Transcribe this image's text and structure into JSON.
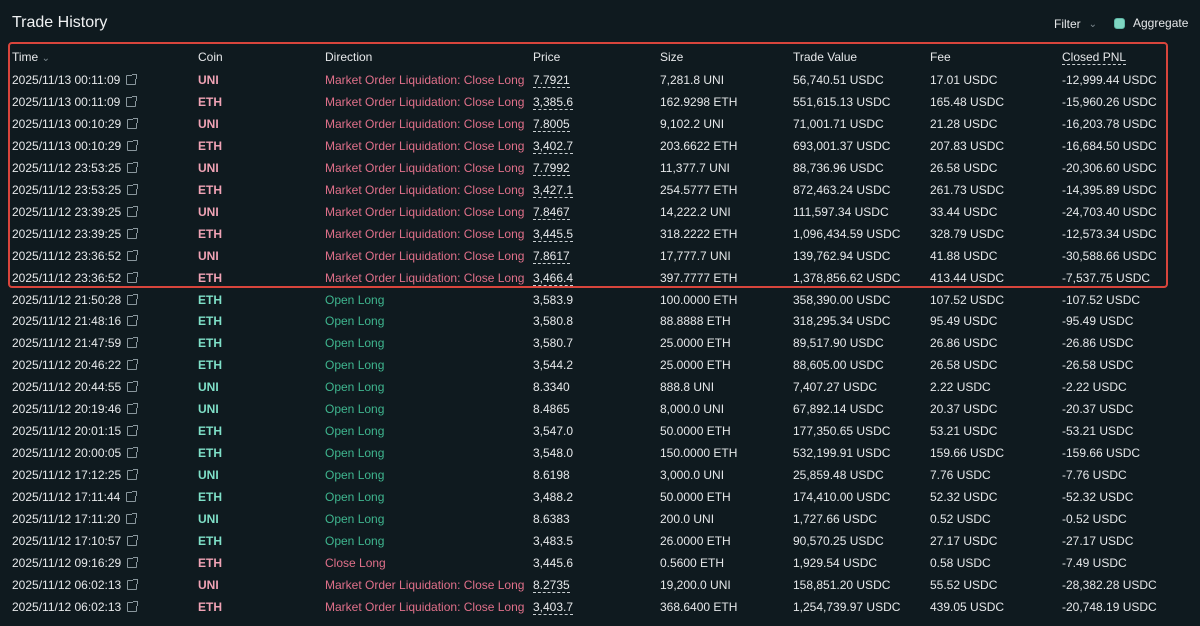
{
  "header": {
    "title": "Trade History",
    "filter_label": "Filter",
    "aggregate_label": "Aggregate",
    "aggregate_checked": true
  },
  "colors": {
    "background": "#0f1a1f",
    "sell": "#e0708a",
    "buy": "#3fb68f",
    "highlight_box": "#d8453c"
  },
  "columns": [
    "Time",
    "Coin",
    "Direction",
    "Price",
    "Size",
    "Trade Value",
    "Fee",
    "Closed PNL"
  ],
  "rows": [
    {
      "time": "2025/11/13 00:11:09",
      "coin": "UNI",
      "direction": "Market Order Liquidation: Close Long",
      "side": "sell",
      "price": "7.7921",
      "price_dashed": true,
      "size": "7,281.8 UNI",
      "value": "56,740.51 USDC",
      "fee": "17.01 USDC",
      "pnl": "-12,999.44 USDC"
    },
    {
      "time": "2025/11/13 00:11:09",
      "coin": "ETH",
      "direction": "Market Order Liquidation: Close Long",
      "side": "sell",
      "price": "3,385.6",
      "price_dashed": true,
      "size": "162.9298 ETH",
      "value": "551,615.13 USDC",
      "fee": "165.48 USDC",
      "pnl": "-15,960.26 USDC"
    },
    {
      "time": "2025/11/13 00:10:29",
      "coin": "UNI",
      "direction": "Market Order Liquidation: Close Long",
      "side": "sell",
      "price": "7.8005",
      "price_dashed": true,
      "size": "9,102.2 UNI",
      "value": "71,001.71 USDC",
      "fee": "21.28 USDC",
      "pnl": "-16,203.78 USDC"
    },
    {
      "time": "2025/11/13 00:10:29",
      "coin": "ETH",
      "direction": "Market Order Liquidation: Close Long",
      "side": "sell",
      "price": "3,402.7",
      "price_dashed": true,
      "size": "203.6622 ETH",
      "value": "693,001.37 USDC",
      "fee": "207.83 USDC",
      "pnl": "-16,684.50 USDC"
    },
    {
      "time": "2025/11/12 23:53:25",
      "coin": "UNI",
      "direction": "Market Order Liquidation: Close Long",
      "side": "sell",
      "price": "7.7992",
      "price_dashed": true,
      "size": "11,377.7 UNI",
      "value": "88,736.96 USDC",
      "fee": "26.58 USDC",
      "pnl": "-20,306.60 USDC"
    },
    {
      "time": "2025/11/12 23:53:25",
      "coin": "ETH",
      "direction": "Market Order Liquidation: Close Long",
      "side": "sell",
      "price": "3,427.1",
      "price_dashed": true,
      "size": "254.5777 ETH",
      "value": "872,463.24 USDC",
      "fee": "261.73 USDC",
      "pnl": "-14,395.89 USDC"
    },
    {
      "time": "2025/11/12 23:39:25",
      "coin": "UNI",
      "direction": "Market Order Liquidation: Close Long",
      "side": "sell",
      "price": "7.8467",
      "price_dashed": true,
      "size": "14,222.2 UNI",
      "value": "111,597.34 USDC",
      "fee": "33.44 USDC",
      "pnl": "-24,703.40 USDC"
    },
    {
      "time": "2025/11/12 23:39:25",
      "coin": "ETH",
      "direction": "Market Order Liquidation: Close Long",
      "side": "sell",
      "price": "3,445.5",
      "price_dashed": true,
      "size": "318.2222 ETH",
      "value": "1,096,434.59 USDC",
      "fee": "328.79 USDC",
      "pnl": "-12,573.34 USDC"
    },
    {
      "time": "2025/11/12 23:36:52",
      "coin": "UNI",
      "direction": "Market Order Liquidation: Close Long",
      "side": "sell",
      "price": "7.8617",
      "price_dashed": true,
      "size": "17,777.7 UNI",
      "value": "139,762.94 USDC",
      "fee": "41.88 USDC",
      "pnl": "-30,588.66 USDC"
    },
    {
      "time": "2025/11/12 23:36:52",
      "coin": "ETH",
      "direction": "Market Order Liquidation: Close Long",
      "side": "sell",
      "price": "3,466.4",
      "price_dashed": true,
      "size": "397.7777 ETH",
      "value": "1,378,856.62 USDC",
      "fee": "413.44 USDC",
      "pnl": "-7,537.75 USDC"
    },
    {
      "time": "2025/11/12 21:50:28",
      "coin": "ETH",
      "direction": "Open Long",
      "side": "buy",
      "price": "3,583.9",
      "price_dashed": false,
      "size": "100.0000 ETH",
      "value": "358,390.00 USDC",
      "fee": "107.52 USDC",
      "pnl": "-107.52 USDC"
    },
    {
      "time": "2025/11/12 21:48:16",
      "coin": "ETH",
      "direction": "Open Long",
      "side": "buy",
      "price": "3,580.8",
      "price_dashed": false,
      "size": "88.8888 ETH",
      "value": "318,295.34 USDC",
      "fee": "95.49 USDC",
      "pnl": "-95.49 USDC"
    },
    {
      "time": "2025/11/12 21:47:59",
      "coin": "ETH",
      "direction": "Open Long",
      "side": "buy",
      "price": "3,580.7",
      "price_dashed": false,
      "size": "25.0000 ETH",
      "value": "89,517.90 USDC",
      "fee": "26.86 USDC",
      "pnl": "-26.86 USDC"
    },
    {
      "time": "2025/11/12 20:46:22",
      "coin": "ETH",
      "direction": "Open Long",
      "side": "buy",
      "price": "3,544.2",
      "price_dashed": false,
      "size": "25.0000 ETH",
      "value": "88,605.00 USDC",
      "fee": "26.58 USDC",
      "pnl": "-26.58 USDC"
    },
    {
      "time": "2025/11/12 20:44:55",
      "coin": "UNI",
      "direction": "Open Long",
      "side": "buy",
      "price": "8.3340",
      "price_dashed": false,
      "size": "888.8 UNI",
      "value": "7,407.27 USDC",
      "fee": "2.22 USDC",
      "pnl": "-2.22 USDC"
    },
    {
      "time": "2025/11/12 20:19:46",
      "coin": "UNI",
      "direction": "Open Long",
      "side": "buy",
      "price": "8.4865",
      "price_dashed": false,
      "size": "8,000.0 UNI",
      "value": "67,892.14 USDC",
      "fee": "20.37 USDC",
      "pnl": "-20.37 USDC"
    },
    {
      "time": "2025/11/12 20:01:15",
      "coin": "ETH",
      "direction": "Open Long",
      "side": "buy",
      "price": "3,547.0",
      "price_dashed": false,
      "size": "50.0000 ETH",
      "value": "177,350.65 USDC",
      "fee": "53.21 USDC",
      "pnl": "-53.21 USDC"
    },
    {
      "time": "2025/11/12 20:00:05",
      "coin": "ETH",
      "direction": "Open Long",
      "side": "buy",
      "price": "3,548.0",
      "price_dashed": false,
      "size": "150.0000 ETH",
      "value": "532,199.91 USDC",
      "fee": "159.66 USDC",
      "pnl": "-159.66 USDC"
    },
    {
      "time": "2025/11/12 17:12:25",
      "coin": "UNI",
      "direction": "Open Long",
      "side": "buy",
      "price": "8.6198",
      "price_dashed": false,
      "size": "3,000.0 UNI",
      "value": "25,859.48 USDC",
      "fee": "7.76 USDC",
      "pnl": "-7.76 USDC"
    },
    {
      "time": "2025/11/12 17:11:44",
      "coin": "ETH",
      "direction": "Open Long",
      "side": "buy",
      "price": "3,488.2",
      "price_dashed": false,
      "size": "50.0000 ETH",
      "value": "174,410.00 USDC",
      "fee": "52.32 USDC",
      "pnl": "-52.32 USDC"
    },
    {
      "time": "2025/11/12 17:11:20",
      "coin": "UNI",
      "direction": "Open Long",
      "side": "buy",
      "price": "8.6383",
      "price_dashed": false,
      "size": "200.0 UNI",
      "value": "1,727.66 USDC",
      "fee": "0.52 USDC",
      "pnl": "-0.52 USDC"
    },
    {
      "time": "2025/11/12 17:10:57",
      "coin": "ETH",
      "direction": "Open Long",
      "side": "buy",
      "price": "3,483.5",
      "price_dashed": false,
      "size": "26.0000 ETH",
      "value": "90,570.25 USDC",
      "fee": "27.17 USDC",
      "pnl": "-27.17 USDC"
    },
    {
      "time": "2025/11/12 09:16:29",
      "coin": "ETH",
      "direction": "Close Long",
      "side": "sell",
      "price": "3,445.6",
      "price_dashed": false,
      "size": "0.5600 ETH",
      "value": "1,929.54 USDC",
      "fee": "0.58 USDC",
      "pnl": "-7.49 USDC"
    },
    {
      "time": "2025/11/12 06:02:13",
      "coin": "UNI",
      "direction": "Market Order Liquidation: Close Long",
      "side": "sell",
      "price": "8.2735",
      "price_dashed": true,
      "size": "19,200.0 UNI",
      "value": "158,851.20 USDC",
      "fee": "55.52 USDC",
      "pnl": "-28,382.28 USDC"
    },
    {
      "time": "2025/11/12 06:02:13",
      "coin": "ETH",
      "direction": "Market Order Liquidation: Close Long",
      "side": "sell",
      "price": "3,403.7",
      "price_dashed": true,
      "size": "368.6400 ETH",
      "value": "1,254,739.97 USDC",
      "fee": "439.05 USDC",
      "pnl": "-20,748.19 USDC"
    }
  ]
}
